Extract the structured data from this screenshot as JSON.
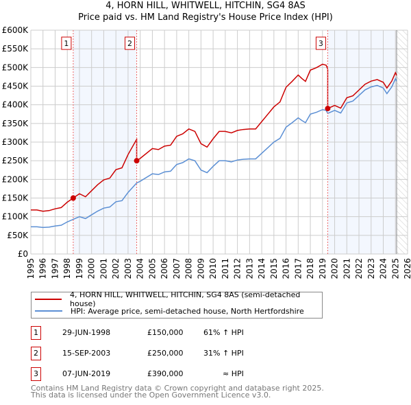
{
  "chart_data": {
    "type": "line",
    "title": "4, HORN HILL, WHITWELL, HITCHIN, SG4 8AS",
    "subtitle": "Price paid vs. HM Land Registry's House Price Index (HPI)",
    "xlim": [
      1995,
      2026
    ],
    "ylim": [
      0,
      600000
    ],
    "x_ticks": [
      "1995",
      "1996",
      "1997",
      "1998",
      "1999",
      "2000",
      "2001",
      "2002",
      "2003",
      "2004",
      "2005",
      "2006",
      "2007",
      "2008",
      "2009",
      "2010",
      "2011",
      "2012",
      "2013",
      "2014",
      "2015",
      "2016",
      "2017",
      "2018",
      "2019",
      "2020",
      "2021",
      "2022",
      "2023",
      "2024",
      "2025",
      "2026"
    ],
    "y_ticks": [
      {
        "v": 0,
        "label": "£0"
      },
      {
        "v": 50000,
        "label": "£50K"
      },
      {
        "v": 100000,
        "label": "£100K"
      },
      {
        "v": 150000,
        "label": "£150K"
      },
      {
        "v": 200000,
        "label": "£200K"
      },
      {
        "v": 250000,
        "label": "£250K"
      },
      {
        "v": 300000,
        "label": "£300K"
      },
      {
        "v": 350000,
        "label": "£350K"
      },
      {
        "v": 400000,
        "label": "£400K"
      },
      {
        "v": 450000,
        "label": "£450K"
      },
      {
        "v": 500000,
        "label": "£500K"
      },
      {
        "v": 550000,
        "label": "£550K"
      },
      {
        "v": 600000,
        "label": "£600K"
      }
    ],
    "grid": true,
    "data_end": 2025.1,
    "series": [
      {
        "name": "4, HORN HILL, WHITWELL, HITCHIN, SG4 8AS (semi-detached house)",
        "color": "#cc0000",
        "derived": "hpi-indexed from sales"
      },
      {
        "name": "HPI: Average price, semi-detached house, North Hertfordshire",
        "color": "#5b8fd4",
        "x": [
          1995,
          1995.5,
          1996,
          1996.5,
          1997,
          1997.5,
          1998,
          1998.5,
          1999,
          1999.5,
          2000,
          2000.5,
          2001,
          2001.5,
          2002,
          2002.5,
          2003,
          2003.7,
          2004,
          2005,
          2005.5,
          2006,
          2006.5,
          2007,
          2007.5,
          2008,
          2008.5,
          2009,
          2009.5,
          2010,
          2010.5,
          2011,
          2011.5,
          2012,
          2012.5,
          2013,
          2013.5,
          2014,
          2014.5,
          2015,
          2015.5,
          2016,
          2016.5,
          2017,
          2017.3,
          2017.6,
          2018,
          2018.5,
          2019,
          2019.3,
          2019.43,
          2020,
          2020.5,
          2021,
          2021.5,
          2022,
          2022.5,
          2023,
          2023.5,
          2024,
          2024.3,
          2024.7,
          2025,
          2025.1
        ],
        "y": [
          73000,
          73000,
          71000,
          72000,
          75000,
          77000,
          86000,
          93000,
          100000,
          95000,
          105000,
          115000,
          123000,
          126000,
          140000,
          143000,
          165000,
          190000,
          195000,
          215000,
          213000,
          220000,
          222000,
          240000,
          245000,
          255000,
          250000,
          225000,
          218000,
          235000,
          250000,
          250000,
          247000,
          252000,
          254000,
          255000,
          255000,
          270000,
          285000,
          300000,
          310000,
          340000,
          352000,
          365000,
          358000,
          352000,
          375000,
          380000,
          387000,
          385000,
          377000,
          385000,
          378000,
          405000,
          410000,
          425000,
          440000,
          448000,
          452000,
          445000,
          430000,
          448000,
          470000,
          463000
        ]
      }
    ],
    "sales": [
      {
        "id": "1",
        "year": 1998.49,
        "price": 150000,
        "date": "29-JUN-1998",
        "price_label": "£150,000",
        "hpi_label": "61% ↑ HPI"
      },
      {
        "id": "2",
        "year": 2003.71,
        "price": 250000,
        "date": "15-SEP-2003",
        "price_label": "£250,000",
        "hpi_label": "31% ↑ HPI"
      },
      {
        "id": "3",
        "year": 2019.43,
        "price": 390000,
        "date": "07-JUN-2019",
        "price_label": "£390,000",
        "hpi_label": "≈ HPI"
      }
    ],
    "legend_position": "below"
  },
  "footer": {
    "line1": "Contains HM Land Registry data © Crown copyright and database right 2025.",
    "line2": "This data is licensed under the Open Government Licence v3.0."
  }
}
